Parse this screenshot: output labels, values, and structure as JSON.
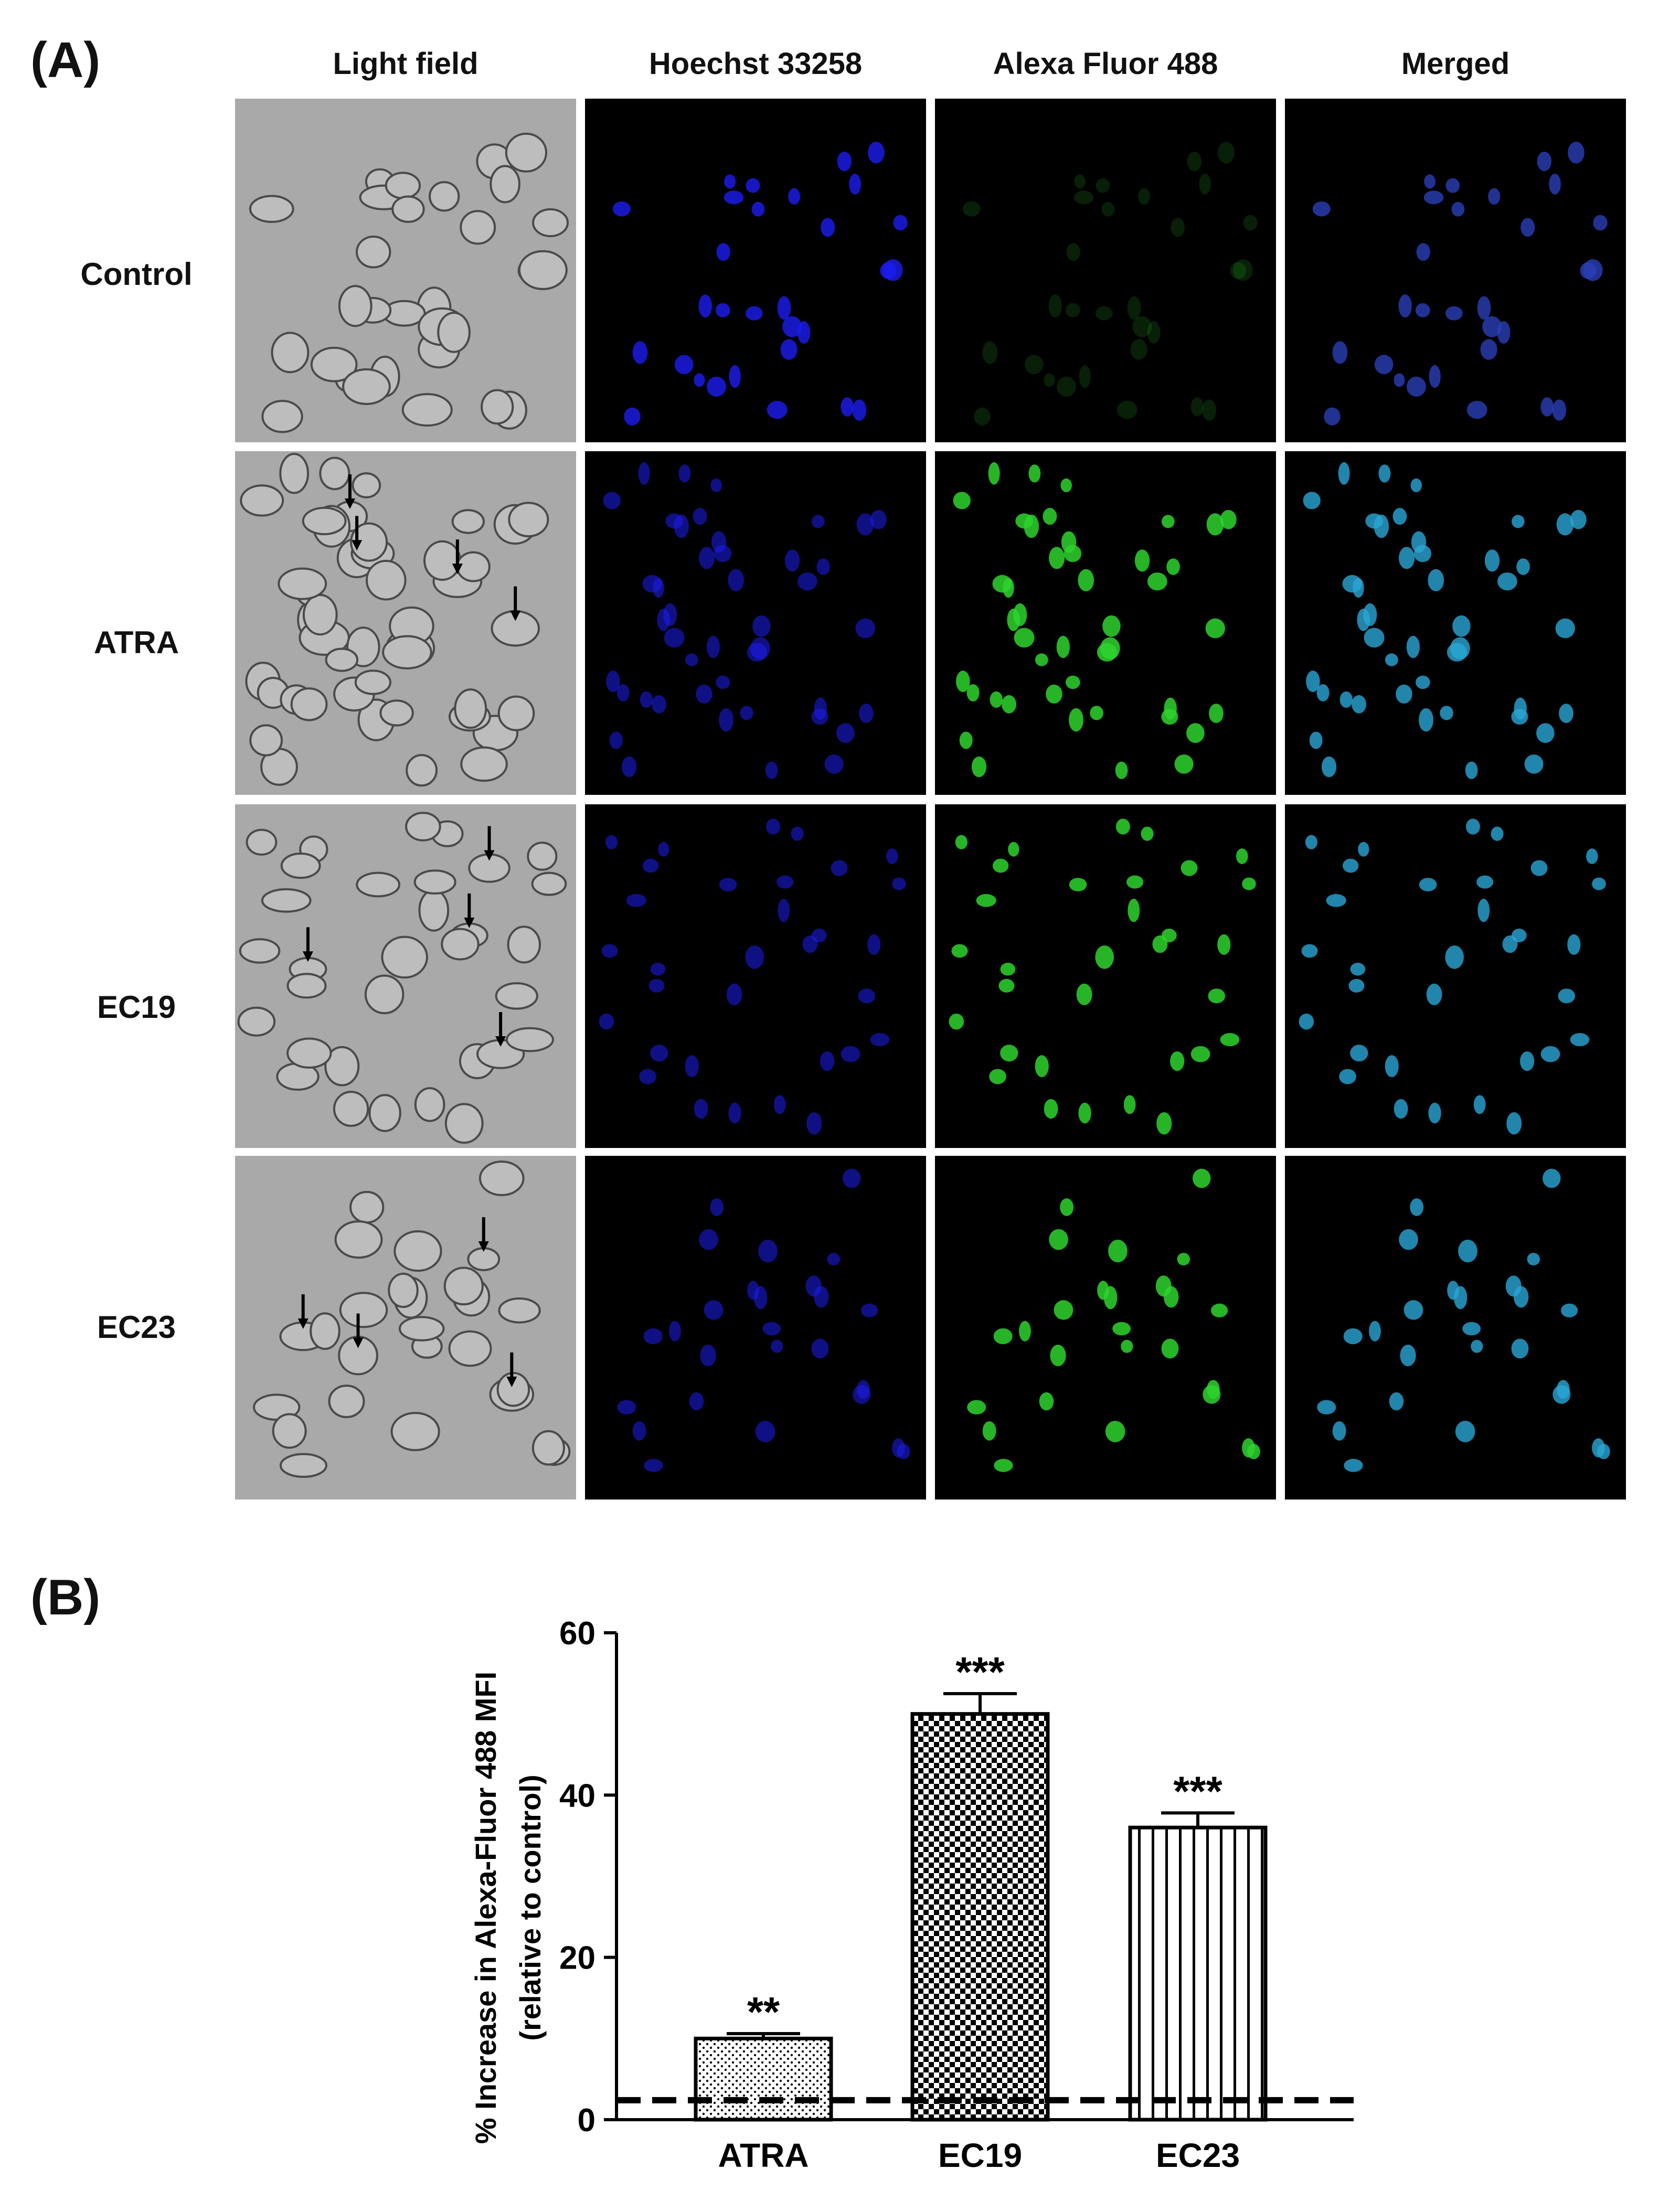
{
  "panel_a_label": "(A)",
  "panel_b_label": "(B)",
  "columns": [
    "Light field",
    "Hoechst 33258",
    "Alexa Fluor 488",
    "Merged"
  ],
  "rows": [
    "Control",
    "ATRA",
    "EC19",
    "EC23"
  ],
  "colors": {
    "blue": "#1d1df2",
    "green": "#2ed42e",
    "cyan": "#2aa6d6",
    "bar_edge": "#000000"
  },
  "chart_data": {
    "type": "bar",
    "categories": [
      "ATRA",
      "EC19",
      "EC23"
    ],
    "values": [
      10,
      50,
      36
    ],
    "errors": [
      0.6,
      2.5,
      1.8
    ],
    "significance": [
      "**",
      "***",
      "***"
    ],
    "patterns": [
      "dots",
      "checker",
      "vertical-lines"
    ],
    "ylabel": "% Increase in Alexa-Fluor 488 MFI",
    "ylabel2": "(relative to control)",
    "ylim": [
      0,
      60
    ],
    "yticks": [
      0,
      20,
      40,
      60
    ],
    "baseline_dashed": 2.4
  }
}
